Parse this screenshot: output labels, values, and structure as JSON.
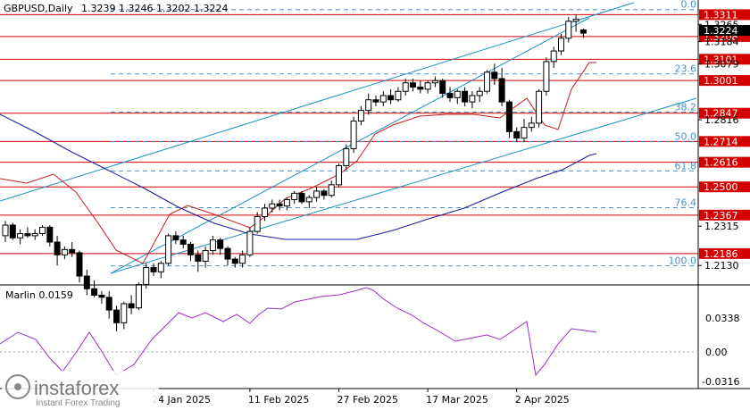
{
  "header": {
    "symbol": "GBPUSD,Daily",
    "ohlc": "1.3239 1.3246 1.3202 1.3224"
  },
  "indicator": {
    "name": "Marlin 0.0159",
    "ticks": [
      "0.0338",
      "0.00",
      "-0.0316"
    ]
  },
  "watermark": {
    "brand": "instaforex",
    "tagline": "Instant Forex Trading"
  },
  "colors": {
    "bull": "#ffffff",
    "bear": "#000000",
    "level": "#d40000",
    "channel": "#1a8fc4",
    "fib": "#4a90c8",
    "ma_red": "#c41e1e",
    "ma_blue": "#1a1a9e",
    "osc": "#9b30c4",
    "current_price_bg": "#000000"
  },
  "chart_data": {
    "type": "candlestick",
    "price_axis": {
      "min": 1.2055,
      "max": 1.338
    },
    "price_ticks": [
      "1.3265",
      "1.3184",
      "1.3079",
      "1.2816",
      "1.2315",
      "1.2130"
    ],
    "current_price": "1.3224",
    "levels": [
      {
        "label": "1.3311",
        "value": 1.3311
      },
      {
        "label": "1.3208",
        "value": 1.3208
      },
      {
        "label": "1.3101",
        "value": 1.3101
      },
      {
        "label": "1.3001",
        "value": 1.3001
      },
      {
        "label": "1.2847",
        "value": 1.2847
      },
      {
        "label": "1.2714",
        "value": 1.2714
      },
      {
        "label": "1.2616",
        "value": 1.2616
      },
      {
        "label": "1.2500",
        "value": 1.25
      },
      {
        "label": "1.2367",
        "value": 1.2367
      },
      {
        "label": "1.2186",
        "value": 1.2186
      }
    ],
    "fibonacci": [
      {
        "label": "0.0",
        "value": 1.3335
      },
      {
        "label": "23.6",
        "value": 1.3032
      },
      {
        "label": "38.2",
        "value": 1.2852
      },
      {
        "label": "50.0",
        "value": 1.2713
      },
      {
        "label": "61.8",
        "value": 1.2575
      },
      {
        "label": "76.4",
        "value": 1.2402
      },
      {
        "label": "100.0",
        "value": 1.2128
      }
    ],
    "x_labels": [
      "24 Jan 2025",
      "11 Feb 2025",
      "27 Feb 2025",
      "17 Mar 2025",
      "2 Apr 2025"
    ],
    "x_label_bars": [
      20,
      33,
      45,
      57,
      69
    ],
    "candles": [
      [
        1.227,
        1.234,
        1.224,
        1.232
      ],
      [
        1.232,
        1.233,
        1.225,
        1.226
      ],
      [
        1.226,
        1.23,
        1.223,
        1.228
      ],
      [
        1.228,
        1.231,
        1.226,
        1.227
      ],
      [
        1.227,
        1.23,
        1.225,
        1.228
      ],
      [
        1.228,
        1.232,
        1.227,
        1.231
      ],
      [
        1.231,
        1.232,
        1.222,
        1.224
      ],
      [
        1.224,
        1.227,
        1.213,
        1.218
      ],
      [
        1.218,
        1.222,
        1.216,
        1.2205
      ],
      [
        1.2205,
        1.224,
        1.217,
        1.219
      ],
      [
        1.219,
        1.22,
        1.205,
        1.208
      ],
      [
        1.208,
        1.211,
        1.199,
        1.202
      ],
      [
        1.202,
        1.206,
        1.198,
        1.199
      ],
      [
        1.199,
        1.201,
        1.195,
        1.198
      ],
      [
        1.198,
        1.201,
        1.188,
        1.192
      ],
      [
        1.192,
        1.194,
        1.182,
        1.186
      ],
      [
        1.186,
        1.196,
        1.183,
        1.195
      ],
      [
        1.195,
        1.199,
        1.19,
        1.193
      ],
      [
        1.193,
        1.205,
        1.192,
        1.204
      ],
      [
        1.204,
        1.214,
        1.202,
        1.212
      ],
      [
        1.212,
        1.214,
        1.208,
        1.21
      ],
      [
        1.21,
        1.215,
        1.207,
        1.214
      ],
      [
        1.214,
        1.228,
        1.213,
        1.227
      ],
      [
        1.227,
        1.229,
        1.223,
        1.225
      ],
      [
        1.225,
        1.227,
        1.221,
        1.223
      ],
      [
        1.223,
        1.224,
        1.215,
        1.218
      ],
      [
        1.218,
        1.22,
        1.21,
        1.215
      ],
      [
        1.215,
        1.222,
        1.212,
        1.22
      ],
      [
        1.22,
        1.227,
        1.218,
        1.225
      ],
      [
        1.225,
        1.226,
        1.218,
        1.221
      ],
      [
        1.221,
        1.222,
        1.213,
        1.216
      ],
      [
        1.216,
        1.217,
        1.212,
        1.214
      ],
      [
        1.214,
        1.22,
        1.212,
        1.218
      ],
      [
        1.218,
        1.231,
        1.217,
        1.229
      ],
      [
        1.229,
        1.238,
        1.228,
        1.236
      ],
      [
        1.236,
        1.242,
        1.234,
        1.24
      ],
      [
        1.24,
        1.244,
        1.238,
        1.242
      ],
      [
        1.242,
        1.244,
        1.239,
        1.241
      ],
      [
        1.241,
        1.245,
        1.239,
        1.244
      ],
      [
        1.244,
        1.248,
        1.242,
        1.247
      ],
      [
        1.247,
        1.248,
        1.242,
        1.243
      ],
      [
        1.243,
        1.246,
        1.24,
        1.245
      ],
      [
        1.245,
        1.25,
        1.243,
        1.248
      ],
      [
        1.248,
        1.249,
        1.244,
        1.246
      ],
      [
        1.246,
        1.253,
        1.245,
        1.251
      ],
      [
        1.251,
        1.261,
        1.25,
        1.26
      ],
      [
        1.26,
        1.27,
        1.258,
        1.268
      ],
      [
        1.268,
        1.283,
        1.266,
        1.281
      ],
      [
        1.281,
        1.288,
        1.279,
        1.286
      ],
      [
        1.286,
        1.294,
        1.284,
        1.291
      ],
      [
        1.291,
        1.293,
        1.288,
        1.29
      ],
      [
        1.29,
        1.295,
        1.288,
        1.293
      ],
      [
        1.293,
        1.296,
        1.289,
        1.291
      ],
      [
        1.291,
        1.297,
        1.29,
        1.295
      ],
      [
        1.295,
        1.301,
        1.293,
        1.299
      ],
      [
        1.299,
        1.301,
        1.295,
        1.297
      ],
      [
        1.297,
        1.3,
        1.294,
        1.296
      ],
      [
        1.296,
        1.3,
        1.294,
        1.299
      ],
      [
        1.299,
        1.302,
        1.297,
        1.3
      ],
      [
        1.3,
        1.301,
        1.292,
        1.294
      ],
      [
        1.294,
        1.297,
        1.29,
        1.292
      ],
      [
        1.292,
        1.296,
        1.289,
        1.295
      ],
      [
        1.295,
        1.297,
        1.288,
        1.29
      ],
      [
        1.29,
        1.295,
        1.287,
        1.293
      ],
      [
        1.293,
        1.297,
        1.29,
        1.295
      ],
      [
        1.295,
        1.305,
        1.294,
        1.304
      ],
      [
        1.304,
        1.308,
        1.298,
        1.301
      ],
      [
        1.301,
        1.306,
        1.288,
        1.29
      ],
      [
        1.29,
        1.291,
        1.273,
        1.276
      ],
      [
        1.276,
        1.278,
        1.271,
        1.273
      ],
      [
        1.273,
        1.282,
        1.271,
        1.278
      ],
      [
        1.278,
        1.283,
        1.276,
        1.28
      ],
      [
        1.28,
        1.296,
        1.278,
        1.295
      ],
      [
        1.295,
        1.311,
        1.293,
        1.309
      ],
      [
        1.309,
        1.316,
        1.306,
        1.314
      ],
      [
        1.314,
        1.322,
        1.312,
        1.32
      ],
      [
        1.32,
        1.33,
        1.318,
        1.328
      ],
      [
        1.328,
        1.331,
        1.323,
        1.329
      ],
      [
        1.3239,
        1.3246,
        1.3202,
        1.3224
      ]
    ]
  }
}
